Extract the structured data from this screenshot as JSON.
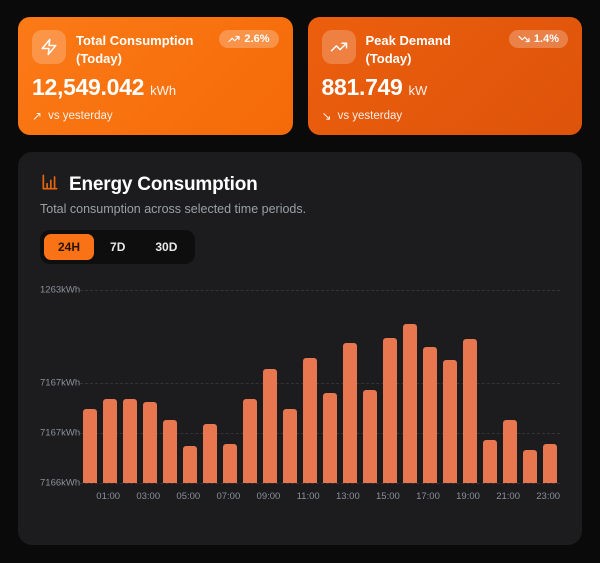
{
  "cards": [
    {
      "title": "Total Consumption (Today)",
      "value": "12,549.042",
      "unit": "kWh",
      "badge": "2.6%",
      "badge_trend": "up",
      "trend_arrow": "↗",
      "trend_label": "vs yesterday",
      "icon": "zap-icon",
      "bg_color": "#f97316"
    },
    {
      "title": "Peak Demand (Today)",
      "value": "881.749",
      "unit": "kW",
      "badge": "1.4%",
      "badge_trend": "down",
      "trend_arrow": "↘",
      "trend_label": "vs yesterday",
      "icon": "trending-up-icon",
      "bg_color": "#e4580c"
    }
  ],
  "panel": {
    "title": "Energy Consumption",
    "subtitle": "Total consumption across selected time periods.",
    "tabs": [
      {
        "label": "24H",
        "active": true
      },
      {
        "label": "7D",
        "active": false
      },
      {
        "label": "30D",
        "active": false
      }
    ]
  },
  "chart_data": {
    "type": "bar",
    "title": "Energy Consumption",
    "x": [
      "00:00",
      "01:00",
      "02:00",
      "03:00",
      "04:00",
      "05:00",
      "06:00",
      "07:00",
      "08:00",
      "09:00",
      "10:00",
      "11:00",
      "12:00",
      "13:00",
      "14:00",
      "15:00",
      "16:00",
      "17:00",
      "18:00",
      "19:00",
      "20:00",
      "21:00",
      "22:00",
      "23:00"
    ],
    "x_labeled_every": 2,
    "x_label_start_index": 1,
    "values": [
      38.4,
      43.6,
      43.6,
      42.2,
      32.5,
      19.0,
      30.4,
      20.1,
      43.3,
      59.2,
      38.1,
      64.7,
      46.7,
      72.3,
      48.1,
      75.1,
      82.5,
      70.6,
      63.7,
      74.7,
      22.1,
      32.5,
      17.3,
      20.1
    ],
    "value_unit": "percent_of_plot_height",
    "y_ticks": [
      {
        "label": "1263kWh",
        "pos_pct": 0
      },
      {
        "label": "7167kWh",
        "pos_pct": 48.4
      },
      {
        "label": "7167kWh",
        "pos_pct": 74.0
      },
      {
        "label": "7166kWh",
        "pos_pct": 100
      }
    ],
    "bar_color": "#e8764f",
    "grid": "horizontal-dashed",
    "legend": "none"
  },
  "colors": {
    "page_bg": "#0a0a0b",
    "panel_bg": "#1c1c1e",
    "accent_orange": "#f97316",
    "bar_color": "#e8764f",
    "axis_text": "#8b9099"
  }
}
